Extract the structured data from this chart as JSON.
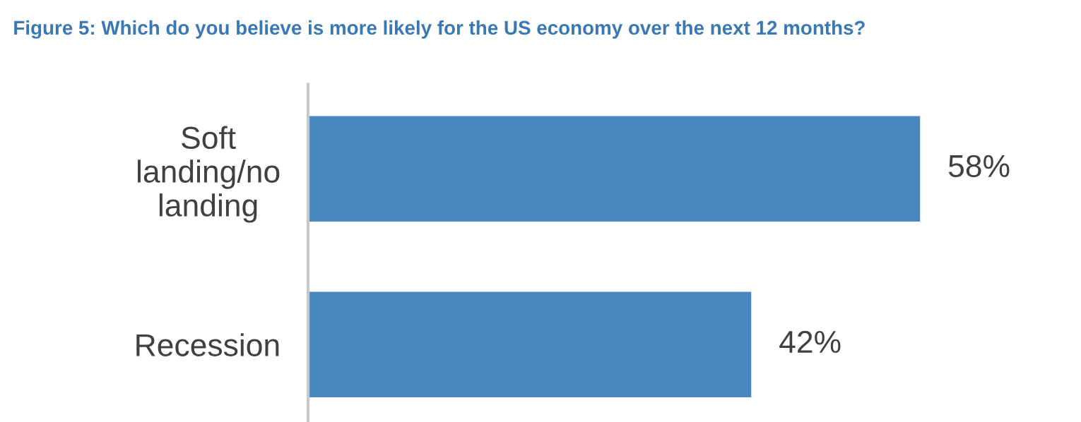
{
  "chart_data": {
    "type": "bar",
    "orientation": "horizontal",
    "title": "Figure 5: Which do you believe is more likely for the US economy over the next 12 months?",
    "categories": [
      "Soft\nlanding/no\nlanding",
      "Recession"
    ],
    "values": [
      58,
      42
    ],
    "value_labels": [
      "58%",
      "42%"
    ],
    "color": "#4a87bf",
    "grid": false,
    "legend": false,
    "tick_labels": "y"
  }
}
